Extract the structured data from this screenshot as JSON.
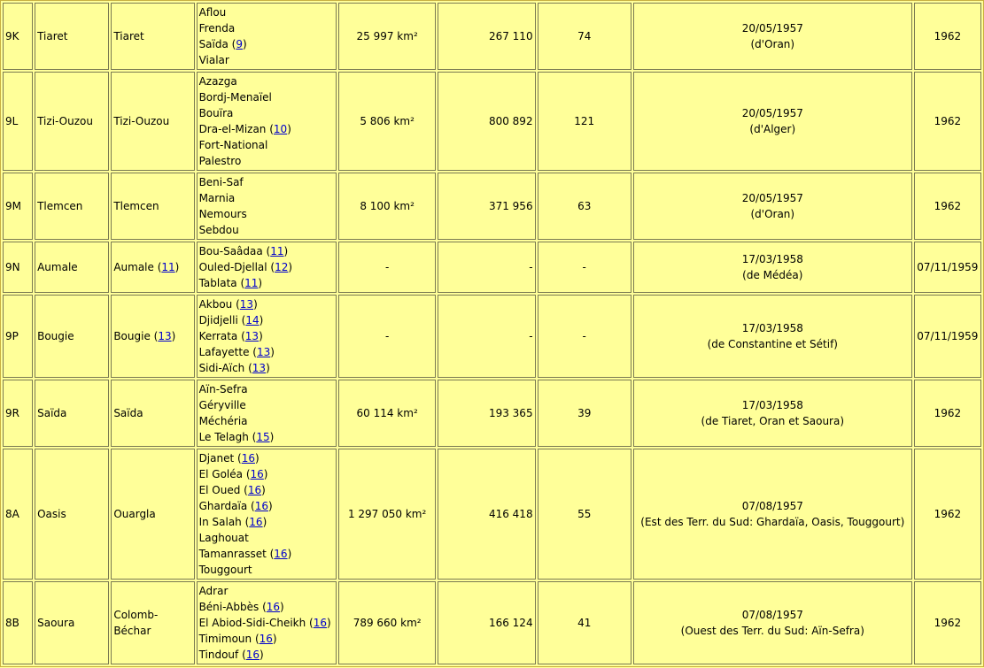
{
  "rows": [
    {
      "code": "9K",
      "name": "Tiaret",
      "capital": "Tiaret",
      "capital_note": "",
      "subprefectures": [
        {
          "name": "Aflou",
          "note": ""
        },
        {
          "name": "Frenda",
          "note": ""
        },
        {
          "name": "Saïda",
          "note": "9"
        },
        {
          "name": "Vialar",
          "note": ""
        }
      ],
      "area": "25 997 km²",
      "population": "267 110",
      "communes": "74",
      "created": "20/05/1957",
      "created_from": "(d'Oran)",
      "ended": "1962"
    },
    {
      "code": "9L",
      "name": "Tizi-Ouzou",
      "capital": "Tizi-Ouzou",
      "capital_note": "",
      "subprefectures": [
        {
          "name": "Azazga",
          "note": ""
        },
        {
          "name": "Bordj-Menaïel",
          "note": ""
        },
        {
          "name": "Bouïra",
          "note": ""
        },
        {
          "name": "Dra-el-Mizan",
          "note": "10"
        },
        {
          "name": "Fort-National",
          "note": ""
        },
        {
          "name": "Palestro",
          "note": ""
        }
      ],
      "area": "5 806 km²",
      "population": "800 892",
      "communes": "121",
      "created": "20/05/1957",
      "created_from": "(d'Alger)",
      "ended": "1962"
    },
    {
      "code": "9M",
      "name": "Tlemcen",
      "capital": "Tlemcen",
      "capital_note": "",
      "subprefectures": [
        {
          "name": "Beni-Saf",
          "note": ""
        },
        {
          "name": "Marnia",
          "note": ""
        },
        {
          "name": "Nemours",
          "note": ""
        },
        {
          "name": "Sebdou",
          "note": ""
        }
      ],
      "area": "8 100 km²",
      "population": "371 956",
      "communes": "63",
      "created": "20/05/1957",
      "created_from": "(d'Oran)",
      "ended": "1962"
    },
    {
      "code": "9N",
      "name": "Aumale",
      "capital": "Aumale",
      "capital_note": "11",
      "subprefectures": [
        {
          "name": "Bou-Saâdaa",
          "note": "11"
        },
        {
          "name": "Ouled-Djellal",
          "note": "12"
        },
        {
          "name": "Tablata",
          "note": "11"
        }
      ],
      "area": "-",
      "population": "-",
      "communes": "-",
      "created": "17/03/1958",
      "created_from": "(de Médéa)",
      "ended": "07/11/1959"
    },
    {
      "code": "9P",
      "name": "Bougie",
      "capital": "Bougie",
      "capital_note": "13",
      "subprefectures": [
        {
          "name": "Akbou",
          "note": "13"
        },
        {
          "name": "Djidjelli",
          "note": "14"
        },
        {
          "name": "Kerrata",
          "note": "13"
        },
        {
          "name": "Lafayette",
          "note": "13"
        },
        {
          "name": "Sidi-Aïch",
          "note": "13"
        }
      ],
      "area": "-",
      "population": "-",
      "communes": "-",
      "created": "17/03/1958",
      "created_from": "(de Constantine et Sétif)",
      "ended": "07/11/1959"
    },
    {
      "code": "9R",
      "name": "Saïda",
      "capital": "Saïda",
      "capital_note": "",
      "subprefectures": [
        {
          "name": "Aïn-Sefra",
          "note": ""
        },
        {
          "name": "Géryville",
          "note": ""
        },
        {
          "name": "Méchéria",
          "note": ""
        },
        {
          "name": "Le Telagh",
          "note": "15"
        }
      ],
      "area": "60 114 km²",
      "population": "193 365",
      "communes": "39",
      "created": "17/03/1958",
      "created_from": "(de Tiaret, Oran et Saoura)",
      "ended": "1962"
    },
    {
      "code": "8A",
      "name": "Oasis",
      "capital": "Ouargla",
      "capital_note": "",
      "subprefectures": [
        {
          "name": "Djanet",
          "note": "16"
        },
        {
          "name": "El Goléa",
          "note": "16"
        },
        {
          "name": "El Oued",
          "note": "16"
        },
        {
          "name": "Ghardaïa",
          "note": "16"
        },
        {
          "name": "In Salah",
          "note": "16"
        },
        {
          "name": "Laghouat",
          "note": ""
        },
        {
          "name": "Tamanrasset",
          "note": "16"
        },
        {
          "name": "Touggourt",
          "note": ""
        }
      ],
      "area": "1 297 050 km²",
      "population": "416 418",
      "communes": "55",
      "created": "07/08/1957",
      "created_from": "(Est des Terr. du Sud: Ghardaïa, Oasis, Touggourt)",
      "ended": "1962"
    },
    {
      "code": "8B",
      "name": "Saoura",
      "capital": "Colomb-Béchar",
      "capital_note": "",
      "subprefectures": [
        {
          "name": "Adrar",
          "note": ""
        },
        {
          "name": "Béni-Abbès",
          "note": "16"
        },
        {
          "name": "El Abiod-Sidi-Cheikh",
          "note": "16"
        },
        {
          "name": "Timimoun",
          "note": "16"
        },
        {
          "name": "Tindouf",
          "note": "16"
        }
      ],
      "area": "789 660 km²",
      "population": "166 124",
      "communes": "41",
      "created": "07/08/1957",
      "created_from": "(Ouest des Terr. du Sud: Aïn-Sefra)",
      "ended": "1962"
    }
  ]
}
